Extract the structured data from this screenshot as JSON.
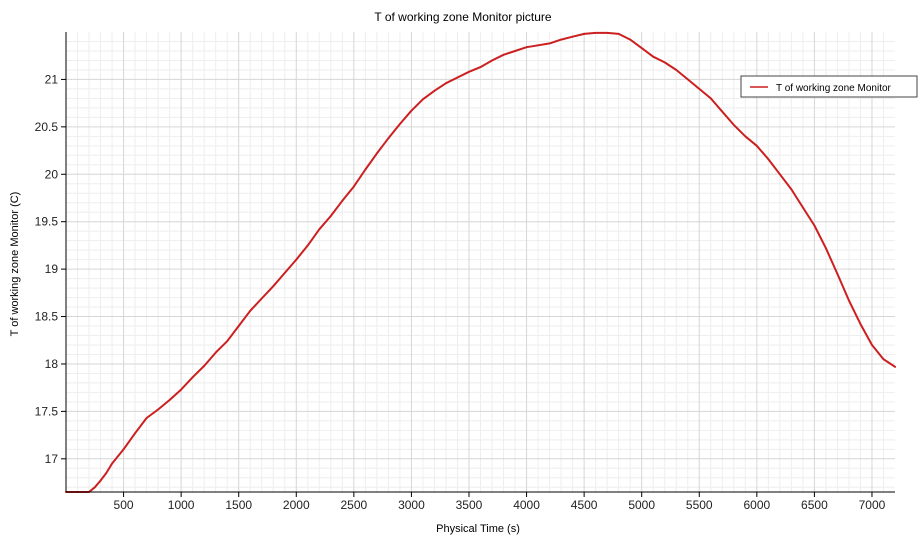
{
  "chart_data": {
    "type": "line",
    "title": "T of working zone Monitor picture",
    "xlabel": "Physical Time (s)",
    "ylabel": "T of working zone Monitor (C)",
    "xlim": [
      0,
      7200
    ],
    "ylim": [
      16.65,
      21.5
    ],
    "x_ticks": [
      500,
      1000,
      1500,
      2000,
      2500,
      3000,
      3500,
      4000,
      4500,
      5000,
      5500,
      6000,
      6500,
      7000
    ],
    "y_ticks": [
      17,
      17.5,
      18,
      18.5,
      19,
      19.5,
      20,
      20.5,
      21
    ],
    "grid": true,
    "legend": "right",
    "series": [
      {
        "name": "T of working zone Monitor",
        "color": "#cc1f1f",
        "x": [
          0,
          100,
          200,
          250,
          300,
          350,
          400,
          500,
          600,
          700,
          800,
          900,
          1000,
          1100,
          1200,
          1300,
          1400,
          1500,
          1600,
          1700,
          1800,
          1900,
          2000,
          2100,
          2200,
          2300,
          2400,
          2500,
          2600,
          2700,
          2800,
          2900,
          3000,
          3100,
          3200,
          3300,
          3400,
          3500,
          3600,
          3700,
          3800,
          3900,
          4000,
          4100,
          4200,
          4300,
          4400,
          4500,
          4600,
          4700,
          4800,
          4900,
          5000,
          5100,
          5200,
          5300,
          5400,
          5500,
          5600,
          5700,
          5800,
          5900,
          6000,
          6100,
          6200,
          6300,
          6400,
          6500,
          6600,
          6700,
          6800,
          6900,
          7000,
          7100,
          7200
        ],
        "values": [
          16.65,
          16.65,
          16.65,
          16.7,
          16.77,
          16.85,
          16.95,
          17.1,
          17.27,
          17.43,
          17.52,
          17.62,
          17.73,
          17.86,
          17.98,
          18.12,
          18.24,
          18.4,
          18.56,
          18.69,
          18.82,
          18.96,
          19.1,
          19.25,
          19.42,
          19.56,
          19.72,
          19.87,
          20.05,
          20.22,
          20.38,
          20.53,
          20.67,
          20.79,
          20.88,
          20.96,
          21.02,
          21.08,
          21.13,
          21.2,
          21.26,
          21.3,
          21.34,
          21.36,
          21.38,
          21.42,
          21.45,
          21.48,
          21.49,
          21.49,
          21.48,
          21.42,
          21.33,
          21.24,
          21.18,
          21.1,
          21.0,
          20.9,
          20.8,
          20.66,
          20.52,
          20.4,
          20.3,
          20.16,
          20.0,
          19.84,
          19.65,
          19.46,
          19.22,
          18.95,
          18.67,
          18.42,
          18.2,
          18.05,
          17.97
        ]
      }
    ]
  }
}
